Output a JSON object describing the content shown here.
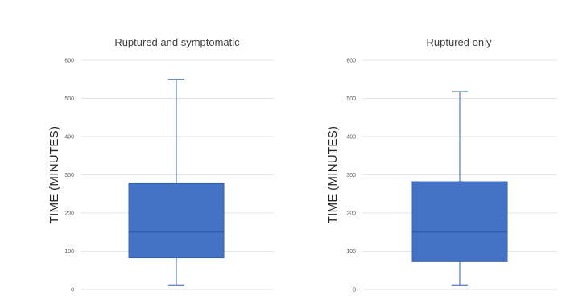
{
  "chart_data": [
    {
      "type": "box",
      "title": "Ruptured  and symptomatic",
      "xlabel": "",
      "ylabel": "TIME (MINUTES)",
      "ylim": [
        0,
        600
      ],
      "yticks": [
        "0",
        "100",
        "200",
        "300",
        "400",
        "500",
        "600"
      ],
      "grid": true,
      "box": {
        "min": 10,
        "q1": 83,
        "median": 150,
        "q3": 277,
        "max": 550
      },
      "color": "#4472c4",
      "edge_color": "#3360b0"
    },
    {
      "type": "box",
      "title": "Ruptured only",
      "xlabel": "",
      "ylabel": "TIME (MINUTES)",
      "ylim": [
        0,
        600
      ],
      "yticks": [
        "0",
        "100",
        "200",
        "300",
        "400",
        "500",
        "600"
      ],
      "grid": true,
      "box": {
        "min": 10,
        "q1": 73,
        "median": 150,
        "q3": 282,
        "max": 518
      },
      "color": "#4472c4",
      "edge_color": "#3360b0"
    }
  ]
}
